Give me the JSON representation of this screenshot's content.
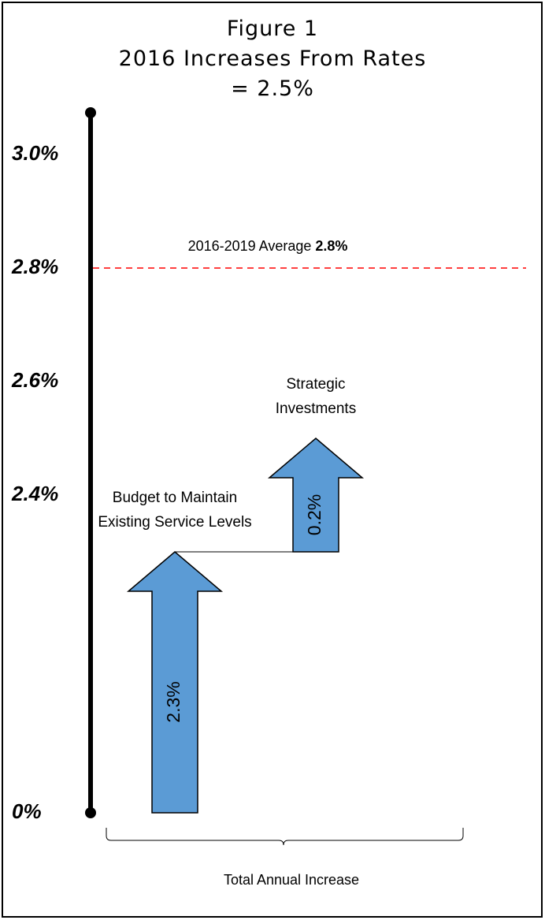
{
  "chart_data": {
    "type": "stacked-arrow",
    "title": [
      "Figure 1",
      "2016 Increases From Rates",
      "= 2.5%"
    ],
    "categories": [
      "Budget to Maintain Existing Service Levels",
      "Strategic Investments"
    ],
    "values": [
      2.3,
      0.2
    ],
    "value_labels": [
      "2.3%",
      "0.2%"
    ],
    "color": "#5b9bd5",
    "yticks": [
      {
        "value": 0,
        "label": "0%"
      },
      {
        "value": 2.4,
        "label": "2.4%"
      },
      {
        "value": 2.6,
        "label": "2.6%"
      },
      {
        "value": 2.8,
        "label": "2.8%"
      },
      {
        "value": 3.0,
        "label": "3.0%"
      }
    ],
    "ylim": [
      0,
      3.0
    ],
    "reference": {
      "label": "2016-2019 Average",
      "value": 2.8,
      "value_label": "2.8%",
      "color": "#ff0000"
    },
    "xlabel": "Total Annual Increase"
  }
}
